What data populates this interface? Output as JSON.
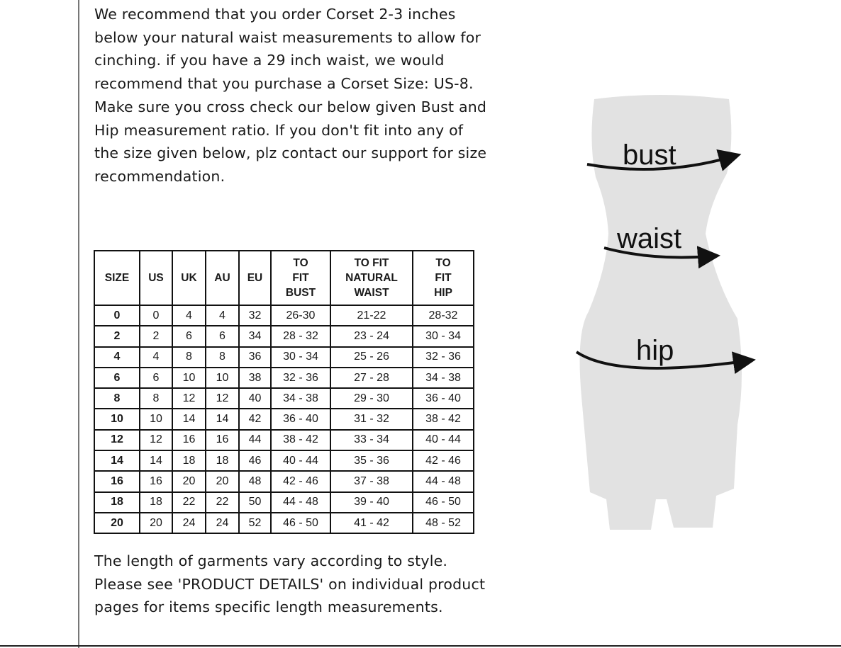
{
  "intro_text": "We recommend that you order Corset 2-3 inches below your natural waist measurements to allow for cinching. if you have a 29 inch waist, we would recommend that you purchase a Corset Size: US-8. Make sure you cross check our below given Bust and Hip measurement ratio. If you don't fit into any of the size given below, plz contact our support for size recommendation.",
  "size_table": {
    "headers": [
      "SIZE",
      "US",
      "UK",
      "AU",
      "EU",
      "TO FIT BUST",
      "TO FIT NATURAL WAIST",
      "TO FIT HIP"
    ],
    "rows": [
      [
        "0",
        "0",
        "4",
        "4",
        "32",
        "26-30",
        "21-22",
        "28-32"
      ],
      [
        "2",
        "2",
        "6",
        "6",
        "34",
        "28 - 32",
        "23 - 24",
        "30 - 34"
      ],
      [
        "4",
        "4",
        "8",
        "8",
        "36",
        "30 - 34",
        "25 - 26",
        "32 - 36"
      ],
      [
        "6",
        "6",
        "10",
        "10",
        "38",
        "32 - 36",
        "27 - 28",
        "34 - 38"
      ],
      [
        "8",
        "8",
        "12",
        "12",
        "40",
        "34 - 38",
        "29 - 30",
        "36 - 40"
      ],
      [
        "10",
        "10",
        "14",
        "14",
        "42",
        "36 - 40",
        "31 - 32",
        "38 - 42"
      ],
      [
        "12",
        "12",
        "16",
        "16",
        "44",
        "38 - 42",
        "33 - 34",
        "40 - 44"
      ],
      [
        "14",
        "14",
        "18",
        "18",
        "46",
        "40 - 44",
        "35 - 36",
        "42 - 46"
      ],
      [
        "16",
        "16",
        "20",
        "20",
        "48",
        "42 - 46",
        "37 - 38",
        "44 - 48"
      ],
      [
        "18",
        "18",
        "22",
        "22",
        "50",
        "44 - 48",
        "39 - 40",
        "46 - 50"
      ],
      [
        "20",
        "20",
        "24",
        "24",
        "52",
        "46 - 50",
        "41 - 42",
        "48 - 52"
      ]
    ]
  },
  "outro_text": "The length of garments vary according to style. Please see 'PRODUCT DETAILS'  on individual product pages for items specific length measurements.",
  "figure": {
    "labels": {
      "bust": "bust",
      "waist": "waist",
      "hip": "hip"
    },
    "body_color": "#e2e2e2"
  }
}
